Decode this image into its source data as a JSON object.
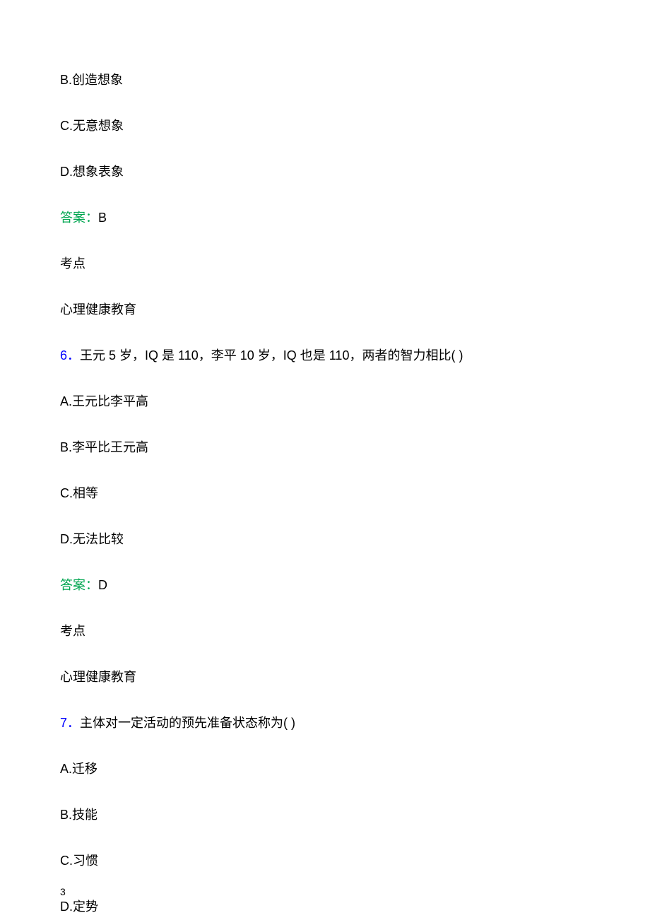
{
  "options_top": {
    "b": "B.创造想象",
    "c": "C.无意想象",
    "d": "D.想象表象"
  },
  "answer_top": {
    "label": "答案：",
    "value": "B"
  },
  "kaodian_label": "考点",
  "kaodian_top": "心理健康教育",
  "q6": {
    "num": "6．",
    "text": "王元 5 岁，IQ 是 110，李平 10 岁，IQ 也是 110，两者的智力相比( )",
    "a": "A.王元比李平高",
    "b": "B.李平比王元高",
    "c": "C.相等",
    "d": "D.无法比较",
    "answer_label": "答案：",
    "answer_value": "D"
  },
  "kaodian_q6": "心理健康教育",
  "q7": {
    "num": "7．",
    "text": "主体对一定活动的预先准备状态称为( )",
    "a": "A.迁移",
    "b": "B.技能",
    "c": "C.习惯",
    "d": "D.定势"
  },
  "page_number": "3"
}
